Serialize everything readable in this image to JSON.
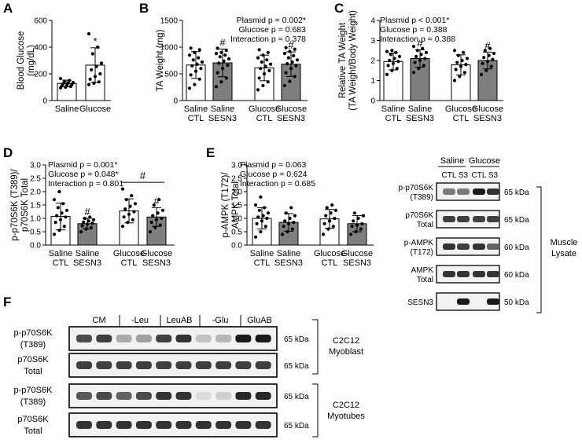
{
  "panel_labels": {
    "a": "A",
    "b": "B",
    "c": "C",
    "d": "D",
    "e": "E",
    "f": "F"
  },
  "chart_data": [
    {
      "id": "A",
      "type": "bar",
      "categories": [
        [
          "Saline"
        ],
        [
          "Glucose"
        ]
      ],
      "values": [
        128,
        265
      ],
      "errors": [
        25,
        130
      ],
      "colors": [
        "#ffffff",
        "#ffffff"
      ],
      "points": [
        [
          95,
          100,
          105,
          110,
          115,
          120,
          125,
          130,
          135,
          140,
          150,
          165
        ],
        [
          120,
          130,
          140,
          160,
          180,
          200,
          230,
          255,
          280,
          350,
          400,
          500
        ]
      ],
      "sig": [
        "",
        "*"
      ],
      "ylabel": [
        "Blood Glucose",
        "(mg/dL)"
      ],
      "ylim": [
        0,
        600
      ],
      "yticks": [
        0,
        200,
        400,
        600
      ],
      "stats": []
    },
    {
      "id": "B",
      "type": "bar",
      "categories": [
        [
          "Saline",
          "CTL"
        ],
        [
          "Saline",
          "SESN3"
        ],
        [
          "Glucose",
          "CTL"
        ],
        [
          "Glucose",
          "SESN3"
        ]
      ],
      "values": [
        665,
        705,
        610,
        680
      ],
      "errors": [
        250,
        260,
        240,
        230
      ],
      "colors": [
        "#ffffff",
        "#7f7f7f",
        "#ffffff",
        "#7f7f7f"
      ],
      "points": [
        [
          230,
          300,
          400,
          480,
          550,
          600,
          650,
          680,
          720,
          760,
          800,
          850,
          900,
          950,
          980
        ],
        [
          260,
          350,
          420,
          520,
          600,
          660,
          700,
          740,
          780,
          820,
          850,
          880,
          900,
          940,
          980
        ],
        [
          200,
          280,
          350,
          420,
          500,
          560,
          600,
          640,
          680,
          720,
          760,
          800,
          850,
          900,
          950
        ],
        [
          280,
          360,
          450,
          520,
          600,
          650,
          690,
          720,
          760,
          800,
          840,
          880,
          920,
          960,
          990
        ]
      ],
      "sig": [
        "",
        "#",
        "",
        "#"
      ],
      "ylabel": [
        "TA Weight (mg)"
      ],
      "ylim": [
        0,
        1500
      ],
      "yticks": [
        0,
        500,
        1000,
        1500
      ],
      "stats": [
        "Plasmid p = 0.002*",
        "Glucose p = 0.683",
        "Interaction p = 0.378"
      ]
    },
    {
      "id": "C",
      "type": "bar",
      "categories": [
        [
          "Saline",
          "CTL"
        ],
        [
          "Saline",
          "SESN3"
        ],
        [
          "Glucose",
          "CTL"
        ],
        [
          "Glucose",
          "SESN3"
        ]
      ],
      "values": [
        1.95,
        2.1,
        1.78,
        2.0
      ],
      "errors": [
        0.42,
        0.43,
        0.5,
        0.42
      ],
      "colors": [
        "#ffffff",
        "#7f7f7f",
        "#ffffff",
        "#7f7f7f"
      ],
      "points": [
        [
          1.3,
          1.5,
          1.6,
          1.75,
          1.85,
          1.95,
          2.0,
          2.1,
          2.2,
          2.3,
          2.4,
          2.45,
          2.5
        ],
        [
          1.4,
          1.6,
          1.75,
          1.9,
          2.0,
          2.1,
          2.2,
          2.3,
          2.4,
          2.5,
          2.6,
          2.7
        ],
        [
          1.0,
          1.2,
          1.4,
          1.55,
          1.7,
          1.8,
          1.9,
          2.0,
          2.1,
          2.25,
          2.4,
          2.5
        ],
        [
          1.3,
          1.5,
          1.7,
          1.85,
          1.95,
          2.05,
          2.15,
          2.25,
          2.35,
          2.5,
          2.6
        ]
      ],
      "sig": [
        "",
        "#",
        "",
        "#"
      ],
      "ylabel": [
        "Relative TA Weight",
        "(TA Weight/Body Weight)"
      ],
      "ylim": [
        0,
        4
      ],
      "yticks": [
        0,
        1,
        2,
        3,
        4
      ],
      "stats": [
        "Plasmid p < 0.001*",
        "Glucose p = 0.388",
        "Interaction p = 0.388"
      ]
    },
    {
      "id": "D",
      "type": "bar",
      "categories": [
        [
          "Saline",
          "CTL"
        ],
        [
          "Saline",
          "SESN3"
        ],
        [
          "Glucose",
          "CTL"
        ],
        [
          "Glucose",
          "SESN3"
        ]
      ],
      "values": [
        1.07,
        0.8,
        1.28,
        1.05
      ],
      "errors": [
        0.5,
        0.2,
        0.45,
        0.35
      ],
      "colors": [
        "#ffffff",
        "#7f7f7f",
        "#ffffff",
        "#7f7f7f"
      ],
      "points": [
        [
          0.4,
          0.55,
          0.7,
          0.85,
          0.95,
          1.05,
          1.1,
          1.2,
          1.3,
          1.4,
          1.55,
          1.7,
          2.0
        ],
        [
          0.5,
          0.6,
          0.65,
          0.72,
          0.78,
          0.82,
          0.86,
          0.9,
          0.95,
          1.0,
          1.05
        ],
        [
          0.7,
          0.85,
          0.95,
          1.05,
          1.15,
          1.25,
          1.35,
          1.45,
          1.55,
          1.7,
          1.85,
          2.1
        ],
        [
          0.5,
          0.65,
          0.75,
          0.85,
          0.95,
          1.0,
          1.1,
          1.2,
          1.3,
          1.5,
          1.7
        ]
      ],
      "sig": [
        "",
        "#",
        "",
        "#"
      ],
      "bracket": {
        "from": 2,
        "to": 3,
        "label": "#"
      },
      "ylabel": [
        "p-p70S6K (T389)/",
        "p70S6K Total"
      ],
      "ylim": [
        0,
        3
      ],
      "yticks": [
        0.0,
        0.5,
        1.0,
        1.5,
        2.0,
        2.5,
        3.0
      ],
      "stats": [
        "Plasmid p = 0.001*",
        "Glucose p = 0.048*",
        "Interaction p = 0.801"
      ]
    },
    {
      "id": "E",
      "type": "bar",
      "categories": [
        [
          "Saline",
          "CTL"
        ],
        [
          "Saline",
          "SESN3"
        ],
        [
          "Glucose",
          "CTL"
        ],
        [
          "Glucose",
          "SESN3"
        ]
      ],
      "values": [
        1.0,
        0.85,
        0.98,
        0.8
      ],
      "errors": [
        0.4,
        0.33,
        0.35,
        0.3
      ],
      "colors": [
        "#ffffff",
        "#7f7f7f",
        "#ffffff",
        "#7f7f7f"
      ],
      "points": [
        [
          0.3,
          0.5,
          0.7,
          0.8,
          0.9,
          1.0,
          1.05,
          1.1,
          1.2,
          1.3,
          1.4,
          1.5,
          1.8
        ],
        [
          0.4,
          0.5,
          0.6,
          0.7,
          0.8,
          0.85,
          0.9,
          1.0,
          1.1,
          1.2,
          1.4
        ],
        [
          0.4,
          0.6,
          0.7,
          0.8,
          0.9,
          1.0,
          1.1,
          1.2,
          1.3,
          1.4,
          1.5
        ],
        [
          0.4,
          0.5,
          0.6,
          0.7,
          0.75,
          0.8,
          0.9,
          1.0,
          1.1,
          1.2
        ]
      ],
      "sig": [
        "",
        "",
        "",
        ""
      ],
      "ylabel": [
        "p-AMPK (T172)/",
        "AMPK Total"
      ],
      "ylim": [
        0,
        3
      ],
      "yticks": [
        0.0,
        0.5,
        1.0,
        1.5,
        2.0,
        2.5,
        3.0
      ],
      "stats": [
        "Plasmid p = 0.063",
        "Glucose p = 0.624",
        "Interaction p = 0.685"
      ]
    }
  ],
  "blot_e": {
    "groups": [
      "Saline",
      "Glucose"
    ],
    "lanes": [
      "CTL",
      "S3",
      "CTL",
      "S3"
    ],
    "rows": [
      {
        "label": [
          "p-p70S6K",
          "(T389)"
        ],
        "kda": "65 kDa",
        "intensity": [
          0.55,
          0.55,
          0.95,
          0.85
        ]
      },
      {
        "label": [
          "p70S6K",
          "Total"
        ],
        "kda": "65 kDa",
        "intensity": [
          0.8,
          0.8,
          0.8,
          0.8
        ]
      },
      {
        "label": [
          "p-AMPK",
          "(T172)"
        ],
        "kda": "60 kDa",
        "intensity": [
          0.85,
          0.8,
          0.85,
          0.65
        ]
      },
      {
        "label": [
          "AMPK",
          "Total"
        ],
        "kda": "60 kDa",
        "intensity": [
          0.85,
          0.85,
          0.85,
          0.85
        ]
      },
      {
        "label": [
          "SESN3"
        ],
        "kda": "50 kDa",
        "intensity": [
          0.0,
          0.95,
          0.0,
          0.95
        ]
      }
    ],
    "side_label": [
      "Muscle",
      "Lysate"
    ]
  },
  "blot_f": {
    "conditions": [
      "CM",
      "-Leu",
      "LeuAB",
      "-Glu",
      "GluAB"
    ],
    "rows": [
      {
        "label": [
          "p-p70S6K",
          "(T389)"
        ],
        "kda": "65 kDa",
        "intensity": [
          0.75,
          0.8,
          0.35,
          0.4,
          0.8,
          0.85,
          0.25,
          0.3,
          0.95,
          0.95
        ]
      },
      {
        "label": [
          "p70S6K",
          "Total"
        ],
        "kda": "65 kDa",
        "intensity": [
          0.8,
          0.8,
          0.8,
          0.8,
          0.8,
          0.8,
          0.8,
          0.8,
          0.8,
          0.8
        ]
      },
      {
        "label": [
          "p-p70S6K",
          "(T389)"
        ],
        "kda": "65 kDa",
        "intensity": [
          0.7,
          0.75,
          0.65,
          0.75,
          0.85,
          0.85,
          0.15,
          0.2,
          0.9,
          0.9
        ]
      },
      {
        "label": [
          "p70S6K",
          "Total"
        ],
        "kda": "65 kDa",
        "intensity": [
          0.85,
          0.85,
          0.85,
          0.85,
          0.85,
          0.85,
          0.85,
          0.85,
          0.85,
          0.85
        ]
      }
    ],
    "side_labels": [
      [
        "C2C12",
        "Myoblast"
      ],
      [
        "C2C12",
        "Myotubes"
      ]
    ]
  }
}
